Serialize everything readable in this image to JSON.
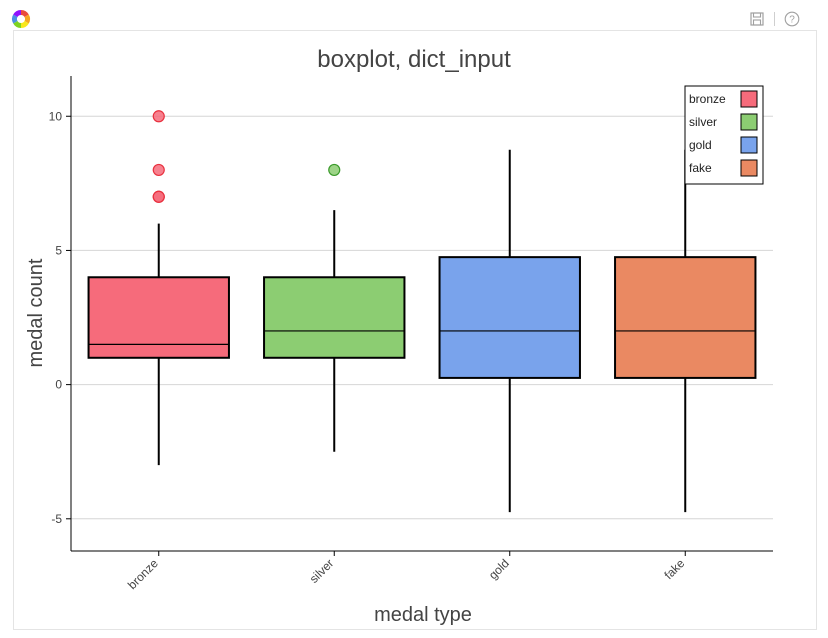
{
  "toolbar": {
    "logo_icon": "bokeh-logo-icon",
    "save_icon": "save-icon",
    "help_icon": "help-icon",
    "help_glyph": "?"
  },
  "chart_data": {
    "type": "boxplot",
    "title": "boxplot, dict_input",
    "xlabel": "medal type",
    "ylabel": "medal count",
    "categories": [
      "bronze",
      "silver",
      "gold",
      "fake"
    ],
    "ylim": [
      -6.2,
      11.5
    ],
    "y_ticks": [
      -5,
      0,
      5,
      10
    ],
    "grid": true,
    "legend_position": "top-right",
    "colors": {
      "bronze": "#f66b7b",
      "silver": "#8ccd72",
      "gold": "#79a3ec",
      "fake": "#ea8962"
    },
    "outlier_edge_colors": {
      "bronze": "#e8303e",
      "silver": "#3a9a2a"
    },
    "boxes": [
      {
        "name": "bronze",
        "lower_whisker": -3.0,
        "q1": 1.0,
        "median": 1.5,
        "q3": 4.0,
        "upper_whisker": 6.0,
        "outliers": [
          7,
          7,
          8,
          10
        ]
      },
      {
        "name": "silver",
        "lower_whisker": -2.5,
        "q1": 1.0,
        "median": 2.0,
        "q3": 4.0,
        "upper_whisker": 6.5,
        "outliers": [
          8
        ]
      },
      {
        "name": "gold",
        "lower_whisker": -4.75,
        "q1": 0.25,
        "median": 2.0,
        "q3": 4.75,
        "upper_whisker": 8.75,
        "outliers": []
      },
      {
        "name": "fake",
        "lower_whisker": -4.75,
        "q1": 0.25,
        "median": 2.0,
        "q3": 4.75,
        "upper_whisker": 8.75,
        "outliers": []
      }
    ],
    "legend": [
      "bronze",
      "silver",
      "gold",
      "fake"
    ]
  }
}
